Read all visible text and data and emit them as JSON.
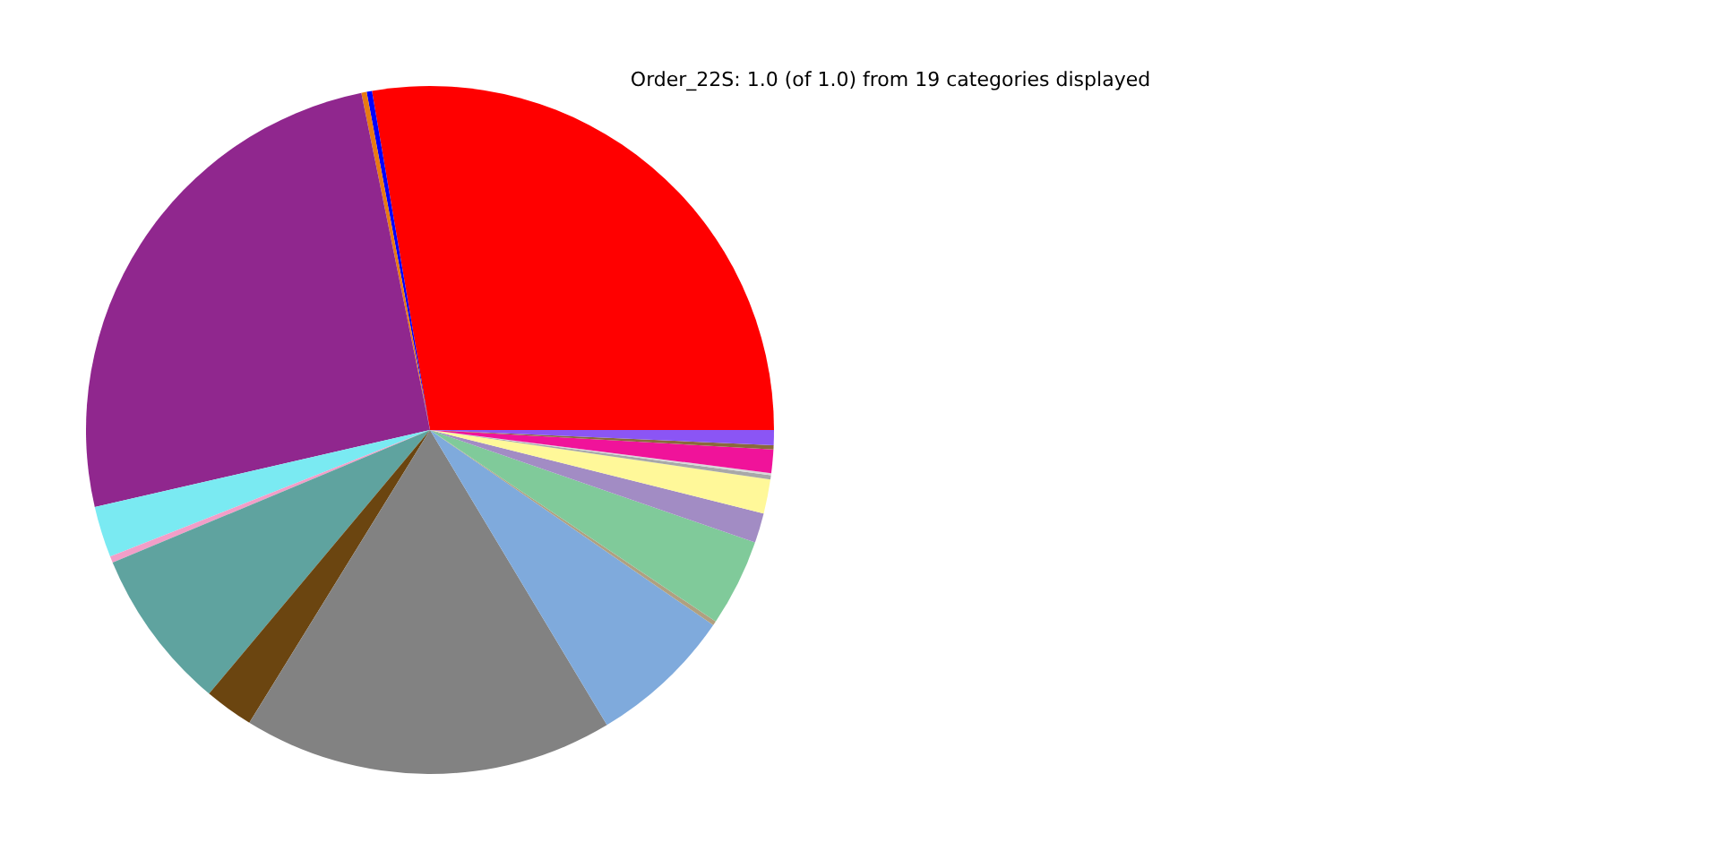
{
  "chart_data": {
    "type": "pie",
    "title": "Order_22S: 1.0 (of 1.0) from 19 categories displayed",
    "categories": [
      null,
      null,
      null,
      null,
      null,
      null,
      null,
      null,
      null,
      null,
      null,
      null,
      null,
      null,
      null,
      null,
      null,
      null,
      null
    ],
    "values": [
      27.7,
      0.25,
      0.25,
      25.4,
      2.4,
      0.3,
      7.6,
      2.3,
      17.4,
      6.8,
      0.2,
      4.1,
      1.4,
      1.6,
      0.2,
      0.1,
      1.1,
      0.2,
      0.7
    ],
    "colors": [
      "#ff0000",
      "#0000ff",
      "#e87a12",
      "#90278e",
      "#7aeaf2",
      "#f29ec8",
      "#5fa39f",
      "#6b4510",
      "#828282",
      "#7faadc",
      "#b0a080",
      "#80ca9a",
      "#a28cc4",
      "#fff899",
      "#a8a8a8",
      "#d8d8d8",
      "#f0139a",
      "#8a6a3a",
      "#8b55f5"
    ]
  }
}
